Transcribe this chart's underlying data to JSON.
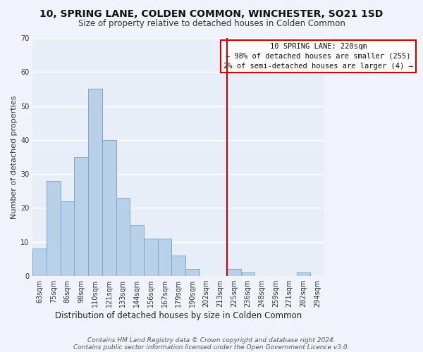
{
  "title": "10, SPRING LANE, COLDEN COMMON, WINCHESTER, SO21 1SD",
  "subtitle": "Size of property relative to detached houses in Colden Common",
  "xlabel": "Distribution of detached houses by size in Colden Common",
  "ylabel": "Number of detached properties",
  "footnote1": "Contains HM Land Registry data © Crown copyright and database right 2024.",
  "footnote2": "Contains public sector information licensed under the Open Government Licence v3.0.",
  "bar_labels": [
    "63sqm",
    "75sqm",
    "86sqm",
    "98sqm",
    "110sqm",
    "121sqm",
    "133sqm",
    "144sqm",
    "156sqm",
    "167sqm",
    "179sqm",
    "190sqm",
    "202sqm",
    "213sqm",
    "225sqm",
    "236sqm",
    "248sqm",
    "259sqm",
    "271sqm",
    "282sqm",
    "294sqm"
  ],
  "bar_values": [
    8,
    28,
    22,
    35,
    55,
    40,
    23,
    15,
    11,
    11,
    6,
    2,
    0,
    0,
    2,
    1,
    0,
    0,
    0,
    1,
    0
  ],
  "bar_color": "#b8d0e8",
  "bar_edge_color": "#7aaac8",
  "background_color": "#f0f4fa",
  "plot_bg_color": "#e8eef8",
  "grid_color": "#ffffff",
  "vline_color": "#cc0000",
  "vline_index": 14,
  "ylim": [
    0,
    70
  ],
  "yticks": [
    0,
    10,
    20,
    30,
    40,
    50,
    60,
    70
  ],
  "legend_title": "10 SPRING LANE: 220sqm",
  "legend_line1": "← 98% of detached houses are smaller (255)",
  "legend_line2": "2% of semi-detached houses are larger (4) →",
  "legend_box_facecolor": "#ffffff",
  "legend_box_edgecolor": "#cc0000",
  "title_fontsize": 10,
  "subtitle_fontsize": 8.5,
  "tick_fontsize": 7,
  "ylabel_fontsize": 8,
  "xlabel_fontsize": 8.5,
  "footnote_fontsize": 6.5
}
